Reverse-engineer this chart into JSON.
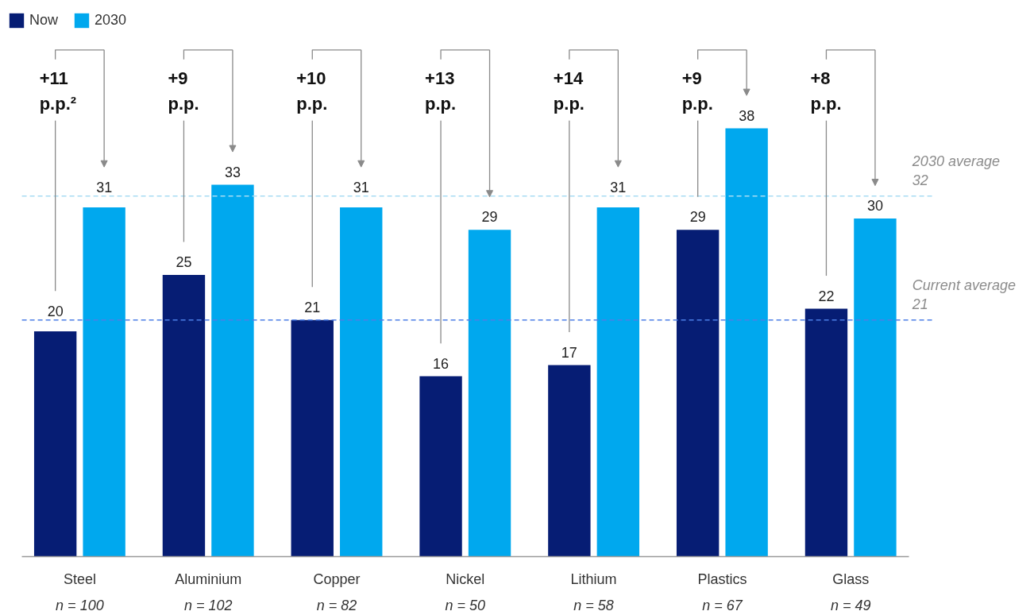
{
  "chart_data": {
    "type": "bar",
    "categories": [
      "Steel\nn = 100",
      "Aluminium\nn = 102",
      "Copper\nn = 82",
      "Nickel\nn = 50",
      "Lithium\nn = 58",
      "Plastics\nn = 67",
      "Glass\nn = 49"
    ],
    "series": [
      {
        "name": "Now",
        "color": "#061d74",
        "values": [
          20,
          25,
          21,
          16,
          17,
          29,
          22
        ]
      },
      {
        "name": "2030",
        "color": "#00a8ee",
        "values": [
          31,
          33,
          31,
          29,
          31,
          38,
          30
        ]
      }
    ],
    "tick_labels": "x",
    "data_labels": true,
    "legend": "top left",
    "ref_lines": [
      {
        "axis": "y",
        "value": 21,
        "label": "Current average\n21",
        "color": "#4d7fe6",
        "line_style": "dashed"
      },
      {
        "axis": "y",
        "value": 32,
        "label": "2030 average\n32",
        "color": "#a8dcf3",
        "line_style": "dashed"
      }
    ],
    "annotations": [
      "+11\np.p.²",
      "+9\np.p.",
      "+10\np.p.",
      "+13\np.p.",
      "+14\np.p.",
      "+9\np.p.",
      "+8\np.p."
    ]
  }
}
